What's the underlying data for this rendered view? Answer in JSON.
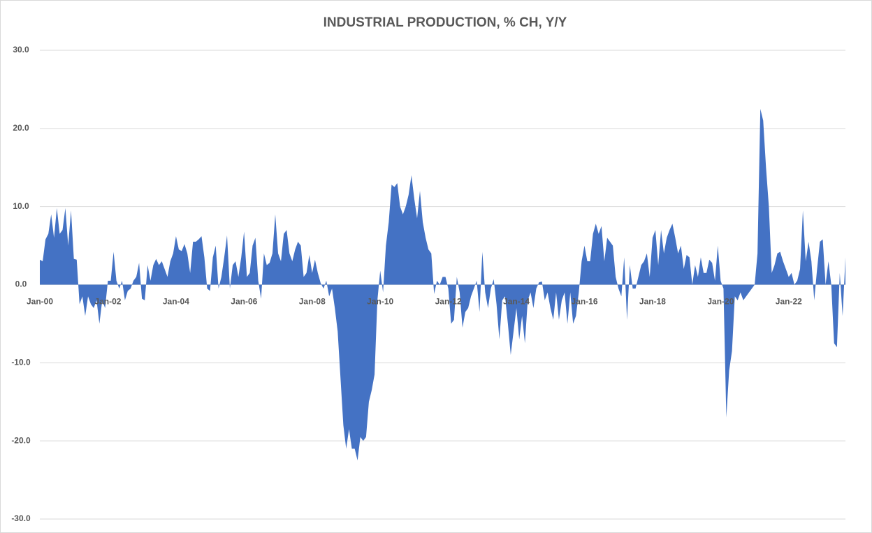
{
  "chart_data": {
    "type": "area",
    "title": "INDUSTRIAL PRODUCTION, % CH, Y/Y",
    "color": "#4472c4",
    "grid": true,
    "ylim": [
      -30,
      30
    ],
    "yticks": [
      {
        "value": -30,
        "label": "-30.0"
      },
      {
        "value": -20,
        "label": "-20.0"
      },
      {
        "value": -10,
        "label": "-10.0"
      },
      {
        "value": 0,
        "label": "0.0"
      },
      {
        "value": 10,
        "label": "10.0"
      },
      {
        "value": 20,
        "label": "20.0"
      },
      {
        "value": 30,
        "label": "30.0"
      }
    ],
    "categories": [
      "Jan-00",
      null,
      null,
      null,
      null,
      null,
      null,
      null,
      null,
      null,
      null,
      null,
      null,
      null,
      null,
      null,
      null,
      null,
      null,
      null,
      null,
      null,
      null,
      null,
      "Jan-02",
      null,
      null,
      null,
      null,
      null,
      null,
      null,
      null,
      null,
      null,
      null,
      null,
      null,
      null,
      null,
      null,
      null,
      null,
      null,
      null,
      null,
      null,
      null,
      "Jan-04",
      null,
      null,
      null,
      null,
      null,
      null,
      null,
      null,
      null,
      null,
      null,
      null,
      null,
      null,
      null,
      null,
      null,
      null,
      null,
      null,
      null,
      null,
      null,
      "Jan-06",
      null,
      null,
      null,
      null,
      null,
      null,
      null,
      null,
      null,
      null,
      null,
      null,
      null,
      null,
      null,
      null,
      null,
      null,
      null,
      null,
      null,
      null,
      null,
      "Jan-08",
      null,
      null,
      null,
      null,
      null,
      null,
      null,
      null,
      null,
      null,
      null,
      null,
      null,
      null,
      null,
      null,
      null,
      null,
      null,
      null,
      null,
      null,
      null,
      "Jan-10",
      null,
      null,
      null,
      null,
      null,
      null,
      null,
      null,
      null,
      null,
      null,
      null,
      null,
      null,
      null,
      null,
      null,
      null,
      null,
      null,
      null,
      null,
      null,
      "Jan-12",
      null,
      null,
      null,
      null,
      null,
      null,
      null,
      null,
      null,
      null,
      null,
      null,
      null,
      null,
      null,
      null,
      null,
      null,
      null,
      null,
      null,
      null,
      null,
      "Jan-14",
      null,
      null,
      null,
      null,
      null,
      null,
      null,
      null,
      null,
      null,
      null,
      null,
      null,
      null,
      null,
      null,
      null,
      null,
      null,
      null,
      null,
      null,
      null,
      "Jan-16",
      null,
      null,
      null,
      null,
      null,
      null,
      null,
      null,
      null,
      null,
      null,
      null,
      null,
      null,
      null,
      null,
      null,
      null,
      null,
      null,
      null,
      null,
      null,
      "Jan-18",
      null,
      null,
      null,
      null,
      null,
      null,
      null,
      null,
      null,
      null,
      null,
      null,
      null,
      null,
      null,
      null,
      null,
      null,
      null,
      null,
      null,
      null,
      null,
      "Jan-20",
      null,
      null,
      null,
      null,
      null,
      null,
      null,
      null,
      null,
      null,
      null,
      null,
      null,
      null,
      null,
      null,
      null,
      null,
      null,
      null,
      null,
      null,
      null,
      "Jan-22",
      null,
      null,
      null,
      null,
      null,
      null,
      null,
      null,
      null,
      null,
      null,
      null,
      null,
      null,
      null,
      null,
      null,
      null,
      null,
      null
    ],
    "values": [
      3.2,
      3,
      5.8,
      6.5,
      9,
      6,
      9.8,
      6.5,
      7,
      9.8,
      5,
      9.5,
      3.3,
      3.2,
      -2.5,
      -1.5,
      -4,
      -1.5,
      -2.5,
      -3,
      -2,
      -5,
      -2,
      -3,
      0.5,
      0.5,
      4.2,
      0.5,
      -0.5,
      0.5,
      -2,
      -0.8,
      -0.5,
      0.5,
      1,
      2.8,
      -1.8,
      -2,
      2.5,
      0.5,
      2.5,
      3.3,
      2.5,
      3,
      2,
      1,
      3,
      4,
      6.2,
      4.5,
      4.3,
      5.2,
      4,
      1.5,
      5.5,
      5.5,
      5.8,
      6.2,
      3.5,
      -0.5,
      -0.8,
      3.5,
      5,
      -0.5,
      1,
      3.5,
      6.3,
      -0.5,
      2.5,
      3,
      1,
      3.5,
      6.8,
      1,
      1.5,
      5,
      6,
      0.5,
      -1.8,
      4,
      2.5,
      2.8,
      4,
      9,
      4,
      3,
      6.5,
      7,
      4,
      3,
      4.5,
      5.5,
      5,
      1,
      1.5,
      3.8,
      1.5,
      3.2,
      1.5,
      0.2,
      -0.5,
      0.5,
      -1.5,
      -0.5,
      -3,
      -6,
      -12,
      -18,
      -21,
      -18.5,
      -21,
      -21,
      -22.5,
      -19.5,
      -20,
      -19.5,
      -15,
      -13.5,
      -11.5,
      -2,
      1.8,
      -1,
      5,
      8,
      12.8,
      12.5,
      13,
      10,
      9,
      10,
      11.5,
      14,
      11,
      8.5,
      12,
      8,
      6,
      4.5,
      4,
      -1.2,
      0.5,
      0,
      1,
      1,
      -0.5,
      -5,
      -4.5,
      1,
      -1,
      -5.5,
      -3.5,
      -3,
      -1.5,
      -0.5,
      0.5,
      -3.5,
      4.2,
      -1,
      -3,
      -0.5,
      0.7,
      -2.5,
      -7,
      -2,
      -1.5,
      -5,
      -9,
      -6,
      -3,
      -7,
      -4,
      -7.5,
      -2,
      -1,
      -3,
      -0.5,
      0.3,
      0.4,
      -2,
      -1,
      -3,
      -4.5,
      -1,
      -4.5,
      -2,
      -1,
      -5,
      -1,
      -5,
      -4,
      -1,
      3,
      5,
      3,
      3,
      6.5,
      7.8,
      6.5,
      7.5,
      3,
      6,
      5.5,
      5,
      1,
      -0.5,
      -1.5,
      3.5,
      -4.5,
      2.5,
      -0.5,
      -0.5,
      1,
      2.5,
      3,
      4,
      1,
      6,
      7,
      2.5,
      7,
      4,
      6,
      7,
      7.8,
      6,
      4,
      5,
      2,
      3.8,
      3.5,
      0,
      2.5,
      1,
      3.5,
      1.5,
      1.5,
      3.2,
      2.8,
      0.5,
      5,
      0.5,
      -0.5,
      -17,
      -11,
      -8.5,
      -1.5,
      -2,
      -1,
      -2,
      -1.5,
      -1,
      -0.5,
      0,
      4,
      22.5,
      21,
      15,
      10,
      1.5,
      2.5,
      4,
      4.2,
      3,
      2,
      1,
      1.5,
      0,
      0.5,
      2,
      9.5,
      3,
      5.5,
      3,
      -2,
      2,
      5.5,
      5.8,
      0,
      3,
      0,
      -7.5,
      -8,
      1.5,
      -4,
      3.5
    ]
  }
}
